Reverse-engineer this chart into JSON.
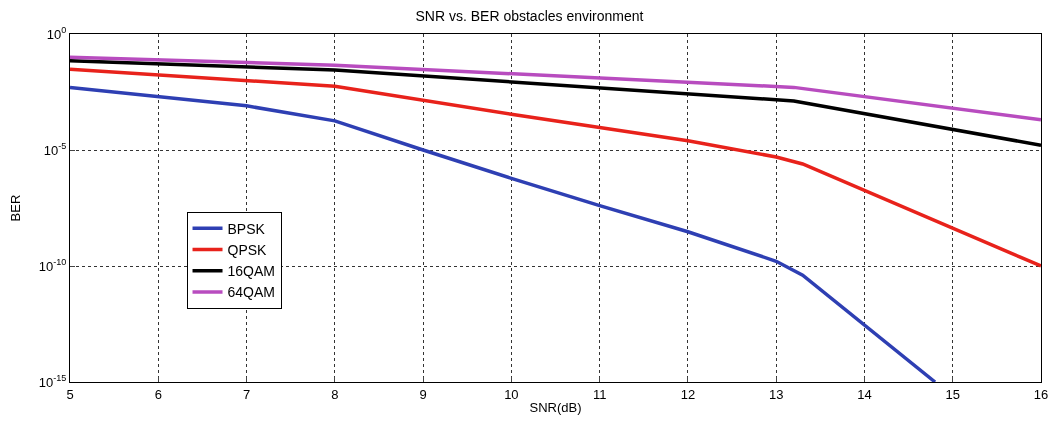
{
  "chart_data": {
    "type": "line",
    "title": "SNR vs. BER obstacles environment",
    "xlabel": "SNR(dB)",
    "ylabel": "BER",
    "log": "y",
    "grid": true,
    "legend": "left",
    "line_style": "solid",
    "marker": "none",
    "xlim": [
      5,
      16
    ],
    "xticks": [
      5,
      6,
      7,
      8,
      9,
      10,
      11,
      12,
      13,
      14,
      15,
      16
    ],
    "ylim": [
      1e-15,
      1
    ],
    "yticks": [
      {
        "value": 1,
        "label": "10$^{0}$"
      },
      {
        "value": 1e-05,
        "label": "10$^{-5}$"
      },
      {
        "value": 1e-10,
        "label": "10$^{-10}$"
      },
      {
        "value": 1e-15,
        "label": "10$^{-15}$"
      }
    ],
    "series": [
      {
        "name": "BPSK",
        "color": "#2e3fb3",
        "x": [
          5,
          7,
          8,
          9,
          10,
          11,
          12,
          13,
          13.3,
          14.8
        ],
        "values": [
          0.005,
          0.0008,
          0.00018,
          1e-05,
          6e-07,
          4e-08,
          3e-09,
          1.6e-10,
          4e-11,
          1e-15
        ]
      },
      {
        "name": "QPSK",
        "color": "#e8221b",
        "x": [
          5,
          8,
          10,
          12,
          13,
          13.3,
          16
        ],
        "values": [
          0.03,
          0.0056,
          0.00035,
          2.5e-05,
          5e-06,
          2.5e-06,
          1e-10
        ]
      },
      {
        "name": "16QAM",
        "color": "#000000",
        "x": [
          5,
          8,
          13.2,
          16
        ],
        "values": [
          0.07,
          0.028,
          0.0013,
          1.6e-05
        ]
      },
      {
        "name": "64QAM",
        "color": "#b84cbf",
        "x": [
          5,
          8,
          13.2,
          16
        ],
        "values": [
          0.1,
          0.045,
          0.005,
          0.0002
        ]
      }
    ]
  }
}
